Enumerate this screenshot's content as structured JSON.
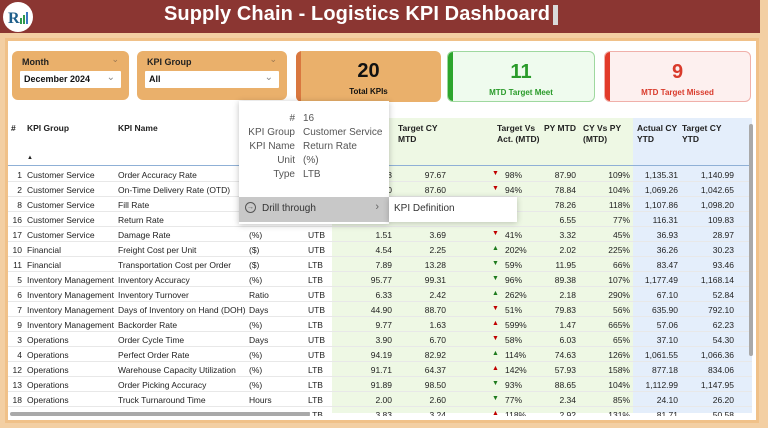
{
  "header": {
    "title": "Supply Chain - Logistics KPI Dashboard",
    "logo_icon": "rk-logo-icon"
  },
  "filters": {
    "month": {
      "label": "Month",
      "value": "December 2024"
    },
    "kpi_group": {
      "label": "KPI Group",
      "value": "All"
    }
  },
  "cards": {
    "total": {
      "value": "20",
      "label": "Total KPIs",
      "bg": "#eab06b",
      "accent": "#d9773f",
      "color": "#111111"
    },
    "meet": {
      "value": "11",
      "label": "MTD Target Meet",
      "bg": "#effbee",
      "accent": "#2da52d",
      "color": "#2a9b2a"
    },
    "missed": {
      "value": "9",
      "label": "MTD Target Missed",
      "bg": "#fdf0ef",
      "accent": "#e23b2a",
      "color": "#d93a2b"
    }
  },
  "table": {
    "columns": {
      "num": "#",
      "group": "KPI Group",
      "name": "KPI Name",
      "target_cy_mtd": "Target CY MTD",
      "target_vs_act": "Target Vs Act. (MTD)",
      "py_mtd": "PY MTD",
      "cy_vs_py": "CY Vs PY (MTD)",
      "actual_cy_ytd": "Actual CY YTD",
      "target_cy_ytd": "Target CY YTD"
    },
    "rows": [
      {
        "num": "1",
        "group": "Customer Service",
        "name": "Order Accuracy Rate",
        "unit": "",
        "type": "",
        "actual": "3",
        "target": "97.67",
        "arrow": "down",
        "arrow_color": "#c00000",
        "tva": "98%",
        "py": "87.90",
        "cvp": "109%",
        "aytd": "1,135.31",
        "tytd": "1,140.99"
      },
      {
        "num": "2",
        "group": "Customer Service",
        "name": "On-Time Delivery Rate (OTD)",
        "unit": "",
        "type": "",
        "actual": "0",
        "target": "87.60",
        "arrow": "down",
        "arrow_color": "#c00000",
        "tva": "94%",
        "py": "78.84",
        "cvp": "104%",
        "aytd": "1,069.26",
        "tytd": "1,042.65"
      },
      {
        "num": "8",
        "group": "Customer Service",
        "name": "Fill Rate",
        "unit": "",
        "type": "",
        "actual": "",
        "target": "",
        "arrow": "",
        "arrow_color": "",
        "tva": "",
        "py": "78.26",
        "cvp": "118%",
        "aytd": "1,107.86",
        "tytd": "1,098.20"
      },
      {
        "num": "16",
        "group": "Customer Service",
        "name": "Return Rate",
        "unit": "",
        "type": "",
        "actual": "",
        "target": "",
        "arrow": "",
        "arrow_color": "",
        "tva": "",
        "py": "6.55",
        "cvp": "77%",
        "aytd": "116.31",
        "tytd": "109.83"
      },
      {
        "num": "17",
        "group": "Customer Service",
        "name": "Damage Rate",
        "unit": "(%)",
        "type": "UTB",
        "actual": "1.51",
        "target": "3.69",
        "arrow": "down",
        "arrow_color": "#c00000",
        "tva": "41%",
        "py": "3.32",
        "cvp": "45%",
        "aytd": "36.93",
        "tytd": "28.97"
      },
      {
        "num": "10",
        "group": "Financial",
        "name": "Freight Cost per Unit",
        "unit": "($)",
        "type": "UTB",
        "actual": "4.54",
        "target": "2.25",
        "arrow": "up",
        "arrow_color": "#1e7b1e",
        "tva": "202%",
        "py": "2.02",
        "cvp": "225%",
        "aytd": "36.26",
        "tytd": "30.23"
      },
      {
        "num": "11",
        "group": "Financial",
        "name": "Transportation Cost per Order",
        "unit": "($)",
        "type": "LTB",
        "actual": "7.89",
        "target": "13.28",
        "arrow": "down",
        "arrow_color": "#1e7b1e",
        "tva": "59%",
        "py": "11.95",
        "cvp": "66%",
        "aytd": "83.47",
        "tytd": "93.46"
      },
      {
        "num": "5",
        "group": "Inventory Management",
        "name": "Inventory Accuracy",
        "unit": "(%)",
        "type": "LTB",
        "actual": "95.77",
        "target": "99.31",
        "arrow": "down",
        "arrow_color": "#1e7b1e",
        "tva": "96%",
        "py": "89.38",
        "cvp": "107%",
        "aytd": "1,177.49",
        "tytd": "1,168.14"
      },
      {
        "num": "6",
        "group": "Inventory Management",
        "name": "Inventory Turnover",
        "unit": "Ratio",
        "type": "UTB",
        "actual": "6.33",
        "target": "2.42",
        "arrow": "up",
        "arrow_color": "#1e7b1e",
        "tva": "262%",
        "py": "2.18",
        "cvp": "290%",
        "aytd": "67.10",
        "tytd": "52.84"
      },
      {
        "num": "7",
        "group": "Inventory Management",
        "name": "Days of Inventory on Hand (DOH)",
        "unit": "Days",
        "type": "UTB",
        "actual": "44.90",
        "target": "88.70",
        "arrow": "down",
        "arrow_color": "#c00000",
        "tva": "51%",
        "py": "79.83",
        "cvp": "56%",
        "aytd": "635.90",
        "tytd": "792.10"
      },
      {
        "num": "9",
        "group": "Inventory Management",
        "name": "Backorder Rate",
        "unit": "(%)",
        "type": "LTB",
        "actual": "9.77",
        "target": "1.63",
        "arrow": "up",
        "arrow_color": "#c00000",
        "tva": "599%",
        "py": "1.47",
        "cvp": "665%",
        "aytd": "57.06",
        "tytd": "62.23"
      },
      {
        "num": "3",
        "group": "Operations",
        "name": "Order Cycle Time",
        "unit": "Days",
        "type": "UTB",
        "actual": "3.90",
        "target": "6.70",
        "arrow": "down",
        "arrow_color": "#c00000",
        "tva": "58%",
        "py": "6.03",
        "cvp": "65%",
        "aytd": "37.10",
        "tytd": "54.30"
      },
      {
        "num": "4",
        "group": "Operations",
        "name": "Perfect Order Rate",
        "unit": "(%)",
        "type": "UTB",
        "actual": "94.19",
        "target": "82.92",
        "arrow": "up",
        "arrow_color": "#1e7b1e",
        "tva": "114%",
        "py": "74.63",
        "cvp": "126%",
        "aytd": "1,061.55",
        "tytd": "1,066.36"
      },
      {
        "num": "12",
        "group": "Operations",
        "name": "Warehouse Capacity Utilization",
        "unit": "(%)",
        "type": "LTB",
        "actual": "91.71",
        "target": "64.37",
        "arrow": "up",
        "arrow_color": "#c00000",
        "tva": "142%",
        "py": "57.93",
        "cvp": "158%",
        "aytd": "877.18",
        "tytd": "834.06"
      },
      {
        "num": "13",
        "group": "Operations",
        "name": "Order Picking Accuracy",
        "unit": "(%)",
        "type": "LTB",
        "actual": "91.89",
        "target": "98.50",
        "arrow": "down",
        "arrow_color": "#1e7b1e",
        "tva": "93%",
        "py": "88.65",
        "cvp": "104%",
        "aytd": "1,112.99",
        "tytd": "1,147.95"
      },
      {
        "num": "18",
        "group": "Operations",
        "name": "Truck Turnaround Time",
        "unit": "Hours",
        "type": "LTB",
        "actual": "2.00",
        "target": "2.60",
        "arrow": "down",
        "arrow_color": "#1e7b1e",
        "tva": "77%",
        "py": "2.34",
        "cvp": "85%",
        "aytd": "24.10",
        "tytd": "26.20"
      },
      {
        "num": "19",
        "group": "Risk Management",
        "name": "Freight Claims Rate",
        "unit": "(%)",
        "type": "LTB",
        "actual": "3.83",
        "target": "3.24",
        "arrow": "up",
        "arrow_color": "#c00000",
        "tva": "118%",
        "py": "2.92",
        "cvp": "131%",
        "aytd": "81.71",
        "tytd": "50.58"
      }
    ]
  },
  "tooltip": {
    "fields": [
      {
        "key": "#",
        "value": "16"
      },
      {
        "key": "KPI Group",
        "value": "Customer Service"
      },
      {
        "key": "KPI Name",
        "value": "Return Rate"
      },
      {
        "key": "Unit",
        "value": "(%)"
      },
      {
        "key": "Type",
        "value": "LTB"
      }
    ],
    "drill_through": "Drill through",
    "submenu_item": "KPI Definition"
  }
}
